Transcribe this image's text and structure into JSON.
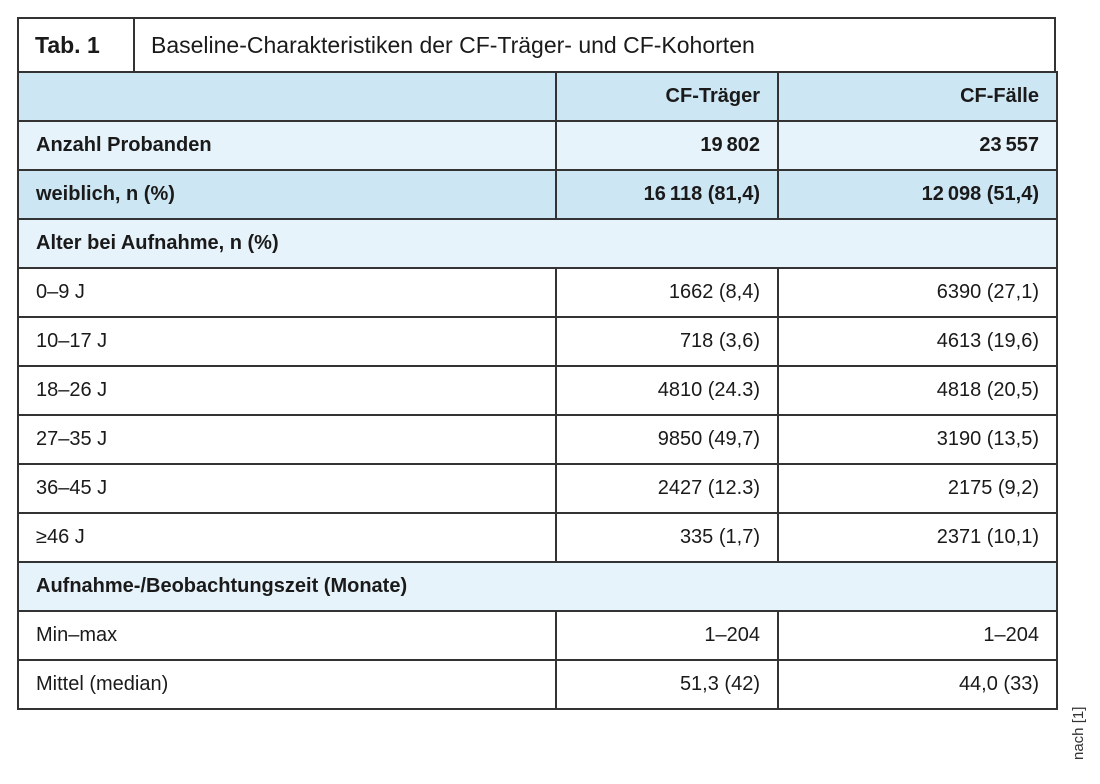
{
  "caption": {
    "label": "Tab. 1",
    "title": "Baseline-Charakteristiken der CF-Träger- und CF-Kohorten"
  },
  "table": {
    "header": [
      "CF-Träger",
      "CF-Fälle"
    ],
    "rows": [
      {
        "kind": "bold",
        "cells": [
          "Anzahl Probanden",
          "19 802",
          "23 557"
        ]
      },
      {
        "kind": "bold-blue",
        "cells": [
          "weiblich, n (%)",
          "16 118 (81,4)",
          "12 098 (51,4)"
        ]
      },
      {
        "kind": "section",
        "cells": [
          "Alter bei Aufnahme, n (%)"
        ]
      },
      {
        "kind": "plain",
        "cells": [
          "0–9 J",
          "1662 (8,4)",
          "6390 (27,1)"
        ]
      },
      {
        "kind": "plain",
        "cells": [
          "10–17 J",
          "718 (3,6)",
          "4613 (19,6)"
        ]
      },
      {
        "kind": "plain",
        "cells": [
          "18–26 J",
          "4810 (24.3)",
          "4818 (20,5)"
        ]
      },
      {
        "kind": "plain",
        "cells": [
          "27–35 J",
          "9850 (49,7)",
          "3190 (13,5)"
        ]
      },
      {
        "kind": "plain",
        "cells": [
          "36–45 J",
          "2427 (12.3)",
          "2175 (9,2)"
        ]
      },
      {
        "kind": "plain",
        "cells": [
          "≥46 J",
          "335 (1,7)",
          "2371 (10,1)"
        ]
      },
      {
        "kind": "section",
        "cells": [
          "Aufnahme-/Beobachtungszeit (Monate)"
        ]
      },
      {
        "kind": "plain",
        "cells": [
          "Min–max",
          "1–204",
          "1–204"
        ]
      },
      {
        "kind": "plain",
        "cells": [
          "Mittel (median)",
          "51,3 (42)",
          "44,0 (33)"
        ]
      }
    ]
  },
  "source": "nach [1]"
}
